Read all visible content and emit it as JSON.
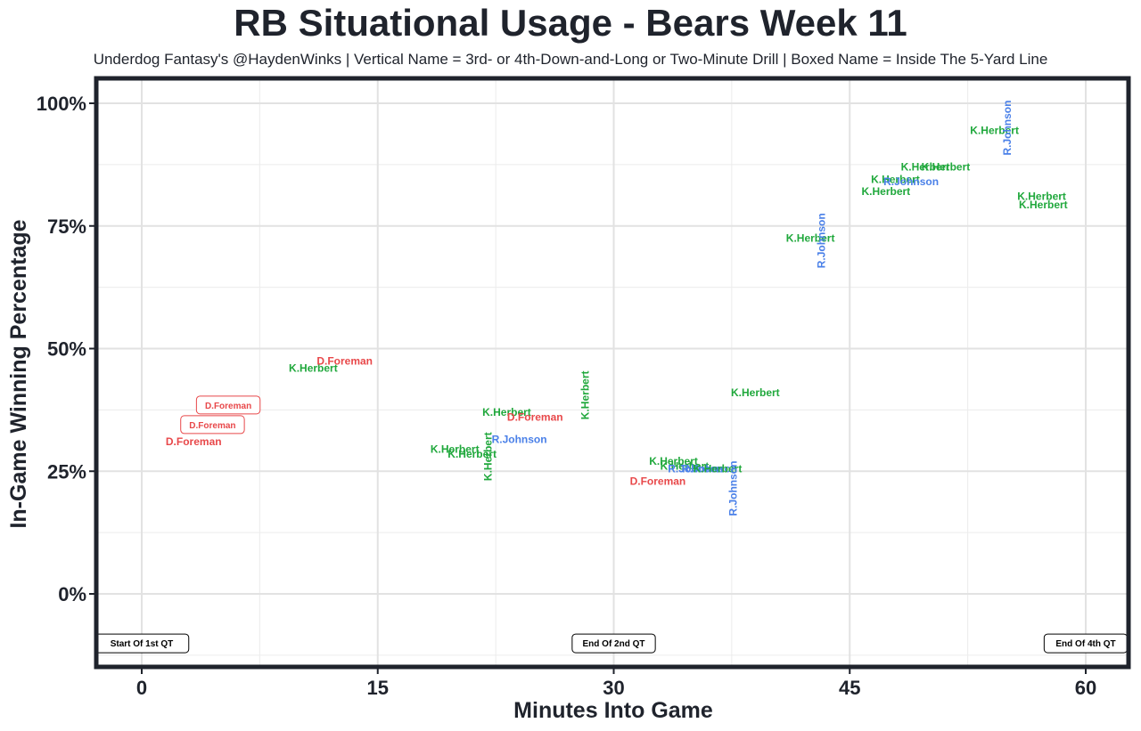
{
  "chart_data": {
    "type": "scatter",
    "title": "RB Situational Usage - Bears Week 11",
    "subtitle": "Underdog Fantasy's @HaydenWinks | Vertical Name = 3rd- or 4th-Down-and-Long or Two-Minute Drill | Boxed Name = Inside The 5-Yard Line",
    "xlabel": "Minutes Into Game",
    "ylabel": "In-Game Winning Percentage",
    "xlim": [
      -3,
      63
    ],
    "ylim": [
      -15,
      105
    ],
    "x_ticks": [
      {
        "value": 0,
        "label": "0"
      },
      {
        "value": 15,
        "label": "15"
      },
      {
        "value": 30,
        "label": "30"
      },
      {
        "value": 45,
        "label": "45"
      },
      {
        "value": 60,
        "label": "60"
      }
    ],
    "y_ticks": [
      {
        "value": 0,
        "label": "0%"
      },
      {
        "value": 25,
        "label": "25%"
      },
      {
        "value": 50,
        "label": "50%"
      },
      {
        "value": 75,
        "label": "75%"
      },
      {
        "value": 100,
        "label": "100%"
      }
    ],
    "grid": true,
    "colors": {
      "D.Foreman": "#e8484a",
      "K.Herbert": "#20a83c",
      "R.Johnson": "#4a80e8"
    },
    "quarter_markers": [
      {
        "x": 0,
        "label": "Start Of 1st QT"
      },
      {
        "x": 30,
        "label": "End Of 2nd QT"
      },
      {
        "x": 60,
        "label": "End Of 4th QT"
      }
    ],
    "points": [
      {
        "player": "D.Foreman",
        "x": 3.3,
        "y": 31.0,
        "style": "normal"
      },
      {
        "player": "D.Foreman",
        "x": 4.5,
        "y": 34.5,
        "style": "boxed"
      },
      {
        "player": "D.Foreman",
        "x": 5.5,
        "y": 38.5,
        "style": "boxed"
      },
      {
        "player": "K.Herbert",
        "x": 10.9,
        "y": 46.0,
        "style": "normal"
      },
      {
        "player": "D.Foreman",
        "x": 12.9,
        "y": 47.5,
        "style": "normal"
      },
      {
        "player": "K.Herbert",
        "x": 19.9,
        "y": 29.5,
        "style": "normal"
      },
      {
        "player": "K.Herbert",
        "x": 21.0,
        "y": 28.5,
        "style": "normal"
      },
      {
        "player": "K.Herbert",
        "x": 22.0,
        "y": 28.0,
        "style": "vertical"
      },
      {
        "player": "K.Herbert",
        "x": 23.2,
        "y": 37.0,
        "style": "normal"
      },
      {
        "player": "D.Foreman",
        "x": 25.0,
        "y": 36.0,
        "style": "normal"
      },
      {
        "player": "R.Johnson",
        "x": 24.0,
        "y": 31.5,
        "style": "normal"
      },
      {
        "player": "K.Herbert",
        "x": 28.2,
        "y": 40.5,
        "style": "vertical"
      },
      {
        "player": "D.Foreman",
        "x": 32.8,
        "y": 23.0,
        "style": "normal"
      },
      {
        "player": "K.Herbert",
        "x": 33.8,
        "y": 27.0,
        "style": "normal"
      },
      {
        "player": "K.Herbert",
        "x": 34.5,
        "y": 26.0,
        "style": "normal"
      },
      {
        "player": "R.Johnson",
        "x": 35.2,
        "y": 25.5,
        "style": "normal"
      },
      {
        "player": "R.Johnson",
        "x": 36.1,
        "y": 25.5,
        "style": "normal"
      },
      {
        "player": "K.Herbert",
        "x": 36.6,
        "y": 25.5,
        "style": "normal"
      },
      {
        "player": "R.Johnson",
        "x": 37.6,
        "y": 21.5,
        "style": "vertical"
      },
      {
        "player": "K.Herbert",
        "x": 39.0,
        "y": 41.0,
        "style": "normal"
      },
      {
        "player": "K.Herbert",
        "x": 42.5,
        "y": 72.5,
        "style": "normal"
      },
      {
        "player": "R.Johnson",
        "x": 43.2,
        "y": 72.0,
        "style": "vertical"
      },
      {
        "player": "K.Herbert",
        "x": 47.3,
        "y": 82.0,
        "style": "normal"
      },
      {
        "player": "K.Herbert",
        "x": 47.9,
        "y": 84.5,
        "style": "normal"
      },
      {
        "player": "R.Johnson",
        "x": 48.9,
        "y": 84.0,
        "style": "normal"
      },
      {
        "player": "K.Herbert",
        "x": 49.8,
        "y": 87.0,
        "style": "normal"
      },
      {
        "player": "K.Herbert",
        "x": 51.1,
        "y": 87.0,
        "style": "normal"
      },
      {
        "player": "K.Herbert",
        "x": 54.2,
        "y": 94.5,
        "style": "normal"
      },
      {
        "player": "R.Johnson",
        "x": 55.0,
        "y": 95.0,
        "style": "vertical"
      },
      {
        "player": "K.Herbert",
        "x": 57.2,
        "y": 81.0,
        "style": "normal"
      },
      {
        "player": "K.Herbert",
        "x": 57.3,
        "y": 79.3,
        "style": "normal"
      }
    ]
  }
}
